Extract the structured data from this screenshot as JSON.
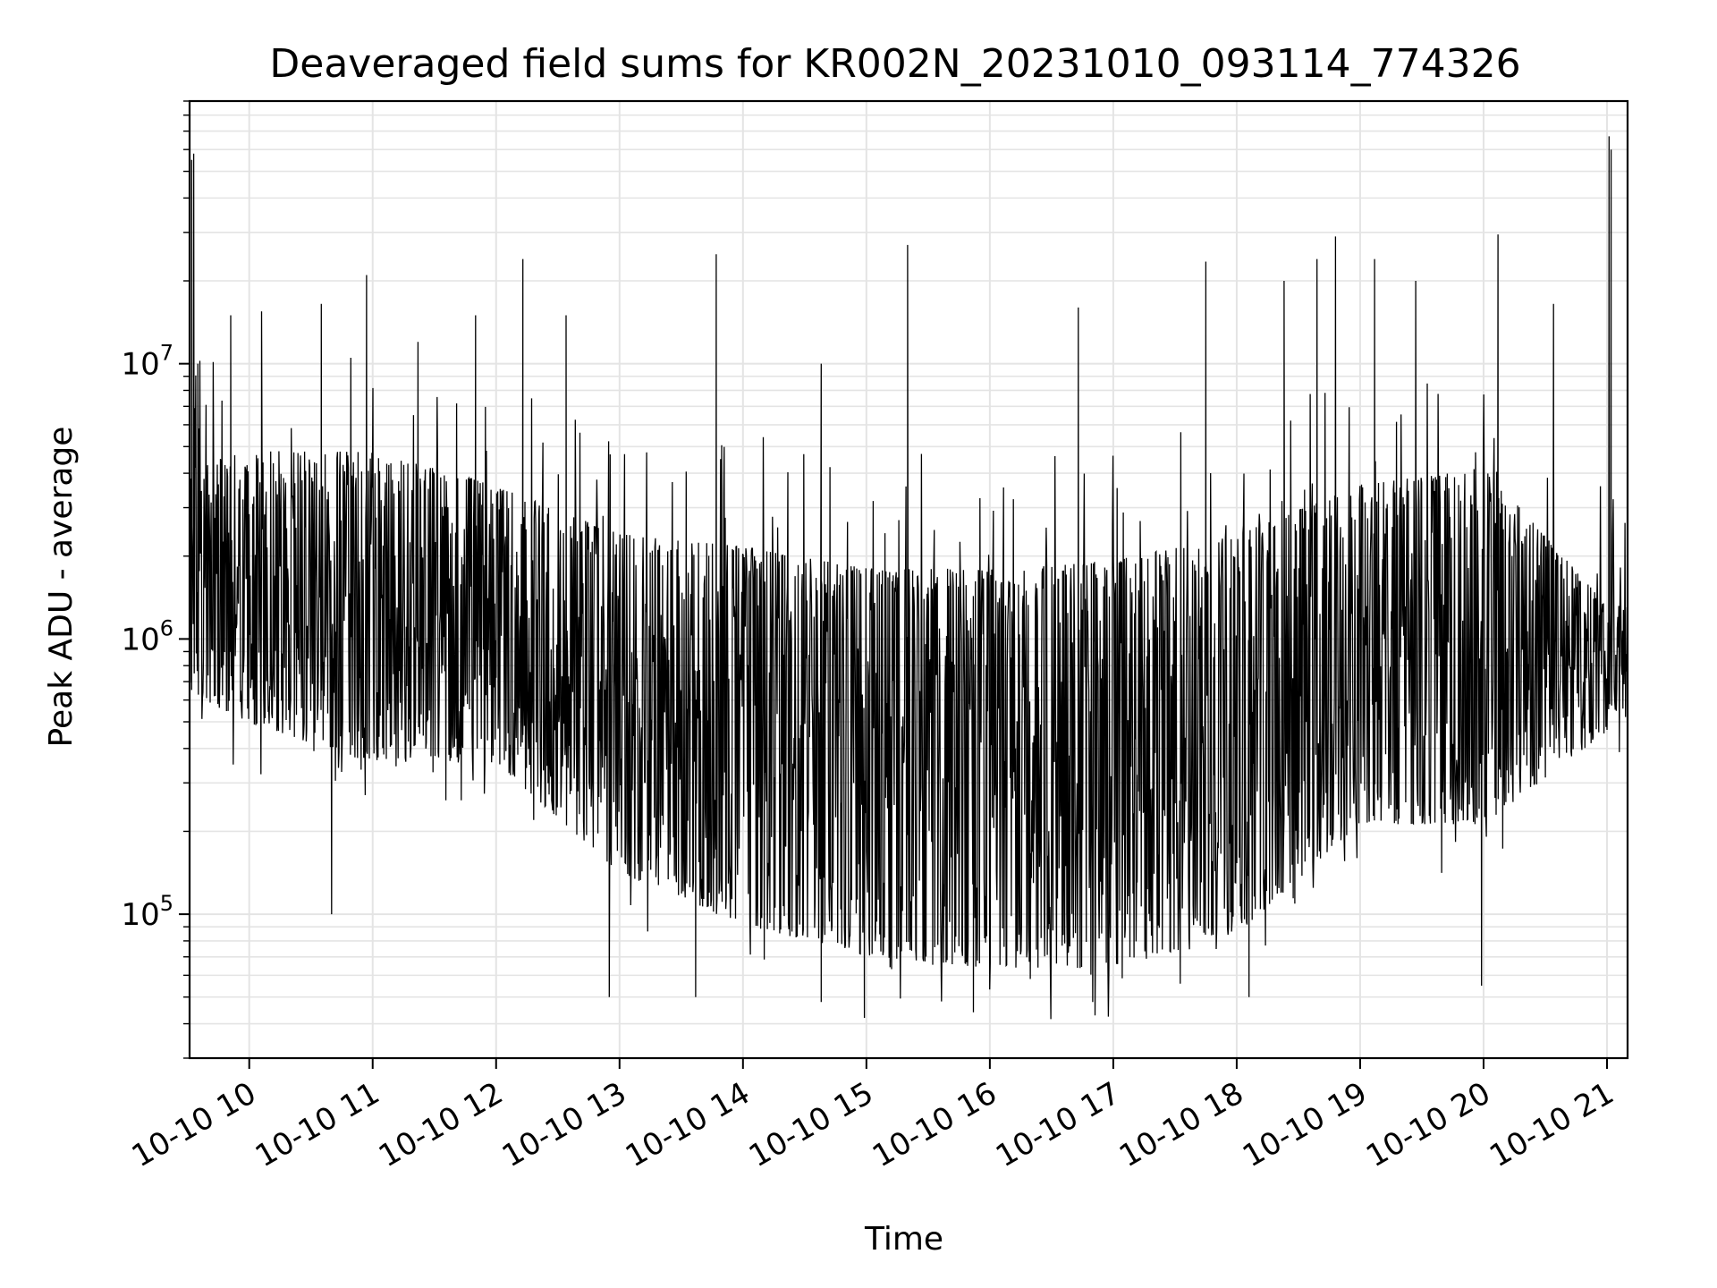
{
  "chart_data": {
    "type": "line",
    "title": "Deaveraged field sums for KR002N_20231010_093114_774326",
    "xlabel": "Time",
    "ylabel": "Peak ADU - average",
    "yscale": "log",
    "ylim": [
      30000,
      90000000
    ],
    "xlim": [
      "2023-10-10 09:31",
      "2023-10-10 21:10"
    ],
    "grid": {
      "major": true,
      "minor": true
    },
    "x_ticks": [
      {
        "value": "2023-10-10 10:00",
        "label": "10-10 10"
      },
      {
        "value": "2023-10-10 11:00",
        "label": "10-10 11"
      },
      {
        "value": "2023-10-10 12:00",
        "label": "10-10 12"
      },
      {
        "value": "2023-10-10 13:00",
        "label": "10-10 13"
      },
      {
        "value": "2023-10-10 14:00",
        "label": "10-10 14"
      },
      {
        "value": "2023-10-10 15:00",
        "label": "10-10 15"
      },
      {
        "value": "2023-10-10 16:00",
        "label": "10-10 16"
      },
      {
        "value": "2023-10-10 17:00",
        "label": "10-10 17"
      },
      {
        "value": "2023-10-10 18:00",
        "label": "10-10 18"
      },
      {
        "value": "2023-10-10 19:00",
        "label": "10-10 19"
      },
      {
        "value": "2023-10-10 20:00",
        "label": "10-10 20"
      },
      {
        "value": "2023-10-10 21:00",
        "label": "10-10 21"
      }
    ],
    "y_ticks": [
      {
        "value": 100000,
        "base": "10",
        "exp": "5"
      },
      {
        "value": 1000000,
        "base": "10",
        "exp": "6"
      },
      {
        "value": 10000000,
        "base": "10",
        "exp": "7"
      }
    ],
    "series": [
      {
        "color": "#000000",
        "x_start": "2023-10-10 09:31",
        "x_end": "2023-10-10 21:10",
        "summary_envelope": [
          {
            "x": "2023-10-10 09:31",
            "typical": [
              900000,
              3500000
            ]
          },
          {
            "x": "2023-10-10 10:00",
            "typical": [
              700000,
              4000000
            ]
          },
          {
            "x": "2023-10-10 11:00",
            "typical": [
              500000,
              4000000
            ]
          },
          {
            "x": "2023-10-10 12:00",
            "typical": [
              500000,
              3000000
            ]
          },
          {
            "x": "2023-10-10 13:00",
            "typical": [
              200000,
              2000000
            ]
          },
          {
            "x": "2023-10-10 14:00",
            "typical": [
              130000,
              1800000
            ]
          },
          {
            "x": "2023-10-10 15:00",
            "typical": [
              100000,
              1500000
            ]
          },
          {
            "x": "2023-10-10 16:00",
            "typical": [
              90000,
              1500000
            ]
          },
          {
            "x": "2023-10-10 17:00",
            "typical": [
              90000,
              1600000
            ]
          },
          {
            "x": "2023-10-10 18:00",
            "typical": [
              120000,
              2000000
            ]
          },
          {
            "x": "2023-10-10 19:00",
            "typical": [
              300000,
              3000000
            ]
          },
          {
            "x": "2023-10-10 20:00",
            "typical": [
              300000,
              3500000
            ]
          },
          {
            "x": "2023-10-10 21:00",
            "typical": [
              650000,
              1100000
            ]
          }
        ],
        "spikes": [
          {
            "x": "2023-10-10 09:32",
            "y": 55000000
          },
          {
            "x": "2023-10-10 09:33",
            "y": 58000000
          },
          {
            "x": "2023-10-10 09:35",
            "y": 10000000
          },
          {
            "x": "2023-10-10 09:51",
            "y": 15000000
          },
          {
            "x": "2023-10-10 10:06",
            "y": 15500000
          },
          {
            "x": "2023-10-10 10:35",
            "y": 16500000
          },
          {
            "x": "2023-10-10 10:57",
            "y": 21000000
          },
          {
            "x": "2023-10-10 11:22",
            "y": 12000000
          },
          {
            "x": "2023-10-10 11:50",
            "y": 15000000
          },
          {
            "x": "2023-10-10 12:13",
            "y": 24000000
          },
          {
            "x": "2023-10-10 12:34",
            "y": 15000000
          },
          {
            "x": "2023-10-10 13:47",
            "y": 25000000
          },
          {
            "x": "2023-10-10 14:38",
            "y": 10000000
          },
          {
            "x": "2023-10-10 15:20",
            "y": 27000000
          },
          {
            "x": "2023-10-10 16:43",
            "y": 16000000
          },
          {
            "x": "2023-10-10 17:45",
            "y": 23500000
          },
          {
            "x": "2023-10-10 18:23",
            "y": 20000000
          },
          {
            "x": "2023-10-10 18:39",
            "y": 24000000
          },
          {
            "x": "2023-10-10 18:48",
            "y": 29000000
          },
          {
            "x": "2023-10-10 19:07",
            "y": 24000000
          },
          {
            "x": "2023-10-10 19:27",
            "y": 20000000
          },
          {
            "x": "2023-10-10 20:07",
            "y": 29500000
          },
          {
            "x": "2023-10-10 20:34",
            "y": 16500000
          },
          {
            "x": "2023-10-10 21:01",
            "y": 67000000
          },
          {
            "x": "2023-10-10 21:02",
            "y": 60000000
          }
        ],
        "dips": [
          {
            "x": "2023-10-10 10:40",
            "y": 100000
          },
          {
            "x": "2023-10-10 12:55",
            "y": 50000
          },
          {
            "x": "2023-10-10 13:37",
            "y": 50000
          },
          {
            "x": "2023-10-10 14:38",
            "y": 48000
          },
          {
            "x": "2023-10-10 14:59",
            "y": 42000
          },
          {
            "x": "2023-10-10 15:52",
            "y": 44000
          },
          {
            "x": "2023-10-10 16:50",
            "y": 48000
          },
          {
            "x": "2023-10-10 18:06",
            "y": 50000
          },
          {
            "x": "2023-10-10 19:59",
            "y": 55000
          }
        ]
      }
    ]
  }
}
